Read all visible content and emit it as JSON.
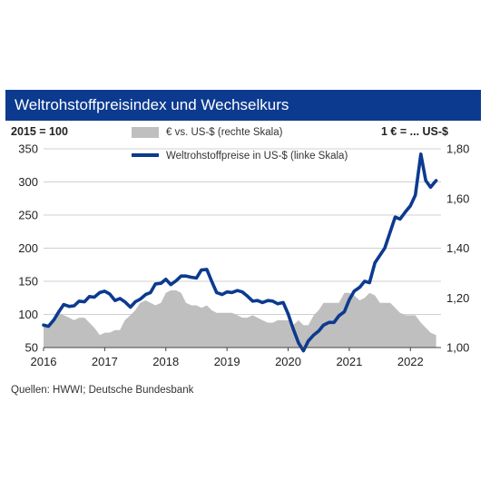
{
  "title": "Weltrohstoffpreisindex und Wechselkurs",
  "left_scale_label": "2015 = 100",
  "right_scale_label": "1 € = ... US-$",
  "source": "Quellen: HWWI; Deutsche Bundesbank",
  "colors": {
    "title_bg": "#0c3a8f",
    "line": "#0c3a8f",
    "area": "#bfbfbf"
  },
  "chart_data": {
    "type": "line",
    "x_ticks": [
      "2016",
      "2017",
      "2018",
      "2019",
      "2020",
      "2021",
      "2022"
    ],
    "x_tick_values": [
      2016,
      2017,
      2018,
      2019,
      2020,
      2021,
      2022
    ],
    "xlim": [
      2016,
      2022.5
    ],
    "ylim_left": [
      50,
      350
    ],
    "y_ticks_left": [
      "50",
      "100",
      "150",
      "200",
      "250",
      "300",
      "350"
    ],
    "ylim_right": [
      1.0,
      1.8
    ],
    "y_ticks_right": [
      "1,00",
      "1,20",
      "1,40",
      "1,60",
      "1,80"
    ],
    "grid": true,
    "series": [
      {
        "name": "€ vs. US-$ (rechte Skala)",
        "type": "area",
        "axis": "right",
        "x": [
          2016.0,
          2016.08,
          2016.17,
          2016.25,
          2016.33,
          2016.42,
          2016.5,
          2016.58,
          2016.67,
          2016.75,
          2016.83,
          2016.92,
          2017.0,
          2017.08,
          2017.17,
          2017.25,
          2017.33,
          2017.42,
          2017.5,
          2017.58,
          2017.67,
          2017.75,
          2017.83,
          2017.92,
          2018.0,
          2018.08,
          2018.17,
          2018.25,
          2018.33,
          2018.42,
          2018.5,
          2018.58,
          2018.67,
          2018.75,
          2018.83,
          2018.92,
          2019.0,
          2019.08,
          2019.17,
          2019.25,
          2019.33,
          2019.42,
          2019.5,
          2019.58,
          2019.67,
          2019.75,
          2019.83,
          2019.92,
          2020.0,
          2020.08,
          2020.17,
          2020.25,
          2020.33,
          2020.42,
          2020.5,
          2020.58,
          2020.67,
          2020.75,
          2020.83,
          2020.92,
          2021.0,
          2021.08,
          2021.17,
          2021.25,
          2021.33,
          2021.42,
          2021.5,
          2021.58,
          2021.67,
          2021.75,
          2021.83,
          2021.92,
          2022.0,
          2022.08,
          2022.17,
          2022.25,
          2022.33,
          2022.42
        ],
        "values": [
          1.09,
          1.09,
          1.11,
          1.14,
          1.13,
          1.12,
          1.11,
          1.12,
          1.12,
          1.1,
          1.08,
          1.05,
          1.06,
          1.06,
          1.07,
          1.07,
          1.11,
          1.13,
          1.15,
          1.18,
          1.19,
          1.18,
          1.17,
          1.18,
          1.22,
          1.23,
          1.23,
          1.22,
          1.18,
          1.17,
          1.17,
          1.16,
          1.17,
          1.15,
          1.14,
          1.14,
          1.14,
          1.14,
          1.13,
          1.12,
          1.12,
          1.13,
          1.12,
          1.11,
          1.1,
          1.1,
          1.11,
          1.11,
          1.11,
          1.09,
          1.11,
          1.09,
          1.09,
          1.13,
          1.15,
          1.18,
          1.18,
          1.18,
          1.18,
          1.22,
          1.22,
          1.21,
          1.19,
          1.2,
          1.22,
          1.21,
          1.18,
          1.18,
          1.18,
          1.16,
          1.14,
          1.13,
          1.13,
          1.13,
          1.1,
          1.08,
          1.06,
          1.05
        ]
      },
      {
        "name": "Weltrohstoffpreise in US-$ (linke Skala)",
        "type": "line",
        "axis": "left",
        "x": [
          2016.0,
          2016.08,
          2016.17,
          2016.25,
          2016.33,
          2016.42,
          2016.5,
          2016.58,
          2016.67,
          2016.75,
          2016.83,
          2016.92,
          2017.0,
          2017.08,
          2017.17,
          2017.25,
          2017.33,
          2017.42,
          2017.5,
          2017.58,
          2017.67,
          2017.75,
          2017.83,
          2017.92,
          2018.0,
          2018.08,
          2018.17,
          2018.25,
          2018.33,
          2018.42,
          2018.5,
          2018.58,
          2018.67,
          2018.75,
          2018.83,
          2018.92,
          2019.0,
          2019.08,
          2019.17,
          2019.25,
          2019.33,
          2019.42,
          2019.5,
          2019.58,
          2019.67,
          2019.75,
          2019.83,
          2019.92,
          2020.0,
          2020.08,
          2020.17,
          2020.25,
          2020.33,
          2020.42,
          2020.5,
          2020.58,
          2020.67,
          2020.75,
          2020.83,
          2020.92,
          2021.0,
          2021.08,
          2021.17,
          2021.25,
          2021.33,
          2021.42,
          2021.5,
          2021.58,
          2021.67,
          2021.75,
          2021.83,
          2021.92,
          2022.0,
          2022.08,
          2022.17,
          2022.25,
          2022.33,
          2022.42
        ],
        "values": [
          84,
          82,
          92,
          104,
          115,
          112,
          113,
          120,
          119,
          127,
          126,
          133,
          135,
          131,
          121,
          124,
          119,
          111,
          119,
          123,
          130,
          133,
          146,
          147,
          153,
          145,
          151,
          158,
          158,
          156,
          155,
          167,
          168,
          150,
          133,
          130,
          134,
          133,
          136,
          134,
          128,
          120,
          121,
          118,
          121,
          120,
          116,
          118,
          101,
          79,
          57,
          45,
          60,
          69,
          75,
          84,
          88,
          88,
          98,
          104,
          122,
          135,
          141,
          150,
          148,
          178,
          189,
          200,
          225,
          247,
          244,
          255,
          264,
          280,
          342,
          302,
          292,
          302
        ]
      }
    ]
  }
}
